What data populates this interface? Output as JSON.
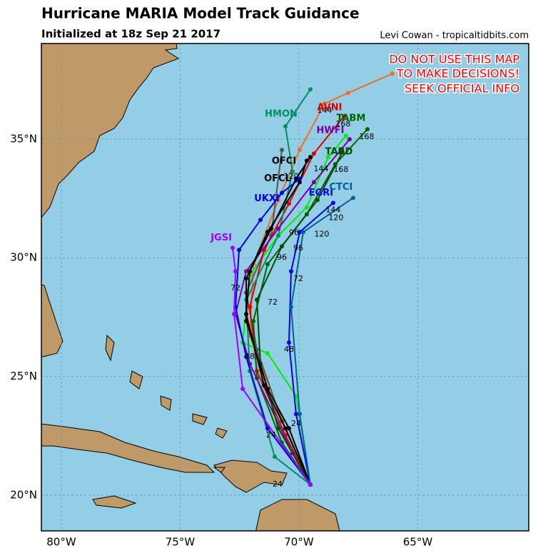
{
  "header": {
    "title": "Hurricane MARIA Model Track Guidance",
    "subtitle": "Initialized at 18z Sep 21 2017",
    "credit": "Levi Cowan - tropicaltidbits.com"
  },
  "warning": [
    "DO NOT USE THIS MAP",
    "TO MAKE DECISIONS!",
    "SEEK OFFICIAL INFO"
  ],
  "map": {
    "xlim": [
      -80.84,
      -60.33
    ],
    "ylim": [
      18.5,
      39.02
    ],
    "xticks": [
      {
        "value": -80,
        "label": "80°W"
      },
      {
        "value": -75,
        "label": "75°W"
      },
      {
        "value": -70,
        "label": "70°W"
      },
      {
        "value": -65,
        "label": "65°W"
      }
    ],
    "yticks": [
      {
        "value": 20,
        "label": "20°N"
      },
      {
        "value": 25,
        "label": "25°N"
      },
      {
        "value": 30,
        "label": "30°N"
      },
      {
        "value": 35,
        "label": "35°N"
      }
    ],
    "grid": true
  },
  "tracks": [
    {
      "color": "#f07020",
      "lon": [
        -69.52,
        -70.57,
        -72.07,
        -71.92,
        -70.87,
        -69.97,
        -68.92,
        -67.93,
        -66.07
      ],
      "lat": [
        20.45,
        22.82,
        26.73,
        29.73,
        32.43,
        34.54,
        36.49,
        36.94,
        37.75
      ]
    },
    {
      "color": "#00ee00",
      "lon": [
        -69.52,
        -70.12,
        -71.32,
        -72.37,
        -72.07,
        -70.87,
        -69.67,
        -68.77,
        -68.02
      ],
      "lat": [
        20.45,
        24.18,
        25.98,
        26.43,
        29.28,
        30.93,
        32.13,
        34.24,
        35.14
      ]
    },
    {
      "color": "#555555",
      "lon": [
        -69.52,
        -70.72,
        -71.77,
        -72.22,
        -71.17,
        -70.72
      ],
      "lat": [
        20.45,
        23.12,
        26.13,
        28.53,
        30.93,
        34.54
      ]
    },
    {
      "name": "AVNI",
      "color": "#e00000",
      "lon": [
        -69.52,
        -70.57,
        -71.77,
        -72.07,
        -71.47,
        -70.42,
        -69.37,
        -68.11
      ],
      "lat": [
        20.45,
        22.52,
        25.23,
        27.93,
        30.33,
        32.28,
        34.39,
        35.95
      ],
      "label_at": [
        -68.71,
        36.31
      ]
    },
    {
      "name": "TABM",
      "color": "#006400",
      "lon": [
        -69.52,
        -70.72,
        -71.77,
        -71.92,
        -71.32,
        -69.67,
        -68.47,
        -67.12
      ],
      "lat": [
        20.45,
        22.22,
        24.93,
        27.33,
        29.73,
        31.83,
        33.94,
        35.41
      ],
      "label_at": [
        -67.81,
        35.86
      ]
    },
    {
      "name": "HMON",
      "color": "#009060",
      "lon": [
        -69.52,
        -71.02,
        -72.07,
        -72.22,
        -70.87,
        -70.27,
        -70.57,
        -69.52
      ],
      "lat": [
        20.45,
        21.62,
        25.23,
        28.23,
        30.93,
        33.63,
        35.53,
        37.09
      ],
      "label_at": [
        -70.75,
        36.04
      ]
    },
    {
      "name": "HWFI",
      "color": "#7a00a0",
      "lon": [
        -69.52,
        -70.27,
        -72.07,
        -72.67,
        -72.22,
        -70.87,
        -69.37,
        -67.87
      ],
      "lat": [
        20.45,
        21.77,
        25.53,
        27.63,
        29.43,
        31.23,
        33.18,
        34.99
      ],
      "label_at": [
        -68.68,
        35.35
      ]
    },
    {
      "name": "TABD",
      "color": "#004d00",
      "lon": [
        -69.52,
        -70.87,
        -71.62,
        -71.77,
        -70.72,
        -69.22,
        -68.17
      ],
      "lat": [
        20.45,
        22.82,
        25.53,
        28.23,
        30.48,
        32.43,
        34.45
      ],
      "label_at": [
        -68.32,
        34.45
      ]
    },
    {
      "name": "OFCI",
      "color": "#000000",
      "lon": [
        -69.52,
        -70.57,
        -71.47,
        -72.22,
        -72.07,
        -71.17,
        -70.12,
        -69.52
      ],
      "lat": [
        20.45,
        22.82,
        24.63,
        27.63,
        29.43,
        31.23,
        33.33,
        34.24
      ],
      "label_at": [
        -70.63,
        34.06
      ]
    },
    {
      "name": "OFCL",
      "color": "#000000",
      "lon": [
        -69.52,
        -70.42,
        -71.32,
        -72.22,
        -72.22,
        -71.32,
        -69.97,
        -69.67
      ],
      "lat": [
        20.45,
        22.82,
        24.48,
        27.33,
        29.13,
        31.08,
        33.18,
        34.09
      ],
      "label_at": [
        -70.9,
        33.33
      ]
    },
    {
      "name": "EGRI",
      "color": "#0000ee",
      "lon": [
        -69.52,
        -70.12,
        -70.42,
        -70.33,
        -69.97,
        -68.56
      ],
      "lat": [
        20.45,
        23.42,
        26.43,
        29.43,
        31.08,
        32.31
      ],
      "label_at": [
        -69.07,
        32.73
      ]
    },
    {
      "name": "CTCI",
      "color": "#00609a",
      "lon": [
        -69.52,
        -69.97,
        -70.33,
        -69.82,
        -67.72
      ],
      "lat": [
        20.45,
        23.42,
        27.93,
        31.08,
        32.52
      ],
      "label_at": [
        -68.23,
        32.97
      ]
    },
    {
      "name": "UKXI",
      "color": "#0000dd",
      "lon": [
        -69.52,
        -71.32,
        -72.22,
        -72.67,
        -72.52,
        -71.62,
        -70.72,
        -69.97
      ],
      "lat": [
        20.45,
        22.82,
        25.83,
        27.93,
        30.33,
        31.59,
        32.73,
        33.33
      ],
      "label_at": [
        -71.35,
        32.49
      ]
    },
    {
      "name": "JGSI",
      "color": "#a000ff",
      "lon": [
        -69.52,
        -72.37,
        -72.73,
        -72.67,
        -72.79
      ],
      "lat": [
        20.45,
        24.48,
        27.63,
        29.43,
        30.42
      ],
      "label_at": [
        -73.27,
        30.84
      ]
    }
  ],
  "hour_labels": [
    {
      "text": "24",
      "lon": -70.12,
      "lat": 23.0
    },
    {
      "text": "24",
      "lon": -71.17,
      "lat": 22.52
    },
    {
      "text": "24",
      "lon": -70.9,
      "lat": 20.45
    },
    {
      "text": "48",
      "lon": -70.42,
      "lat": 26.13
    },
    {
      "text": "48",
      "lon": -72.07,
      "lat": 25.83
    },
    {
      "text": "72",
      "lon": -70.03,
      "lat": 29.1
    },
    {
      "text": "72",
      "lon": -71.11,
      "lat": 28.11
    },
    {
      "text": "72",
      "lon": -72.67,
      "lat": 28.71
    },
    {
      "text": "96",
      "lon": -70.21,
      "lat": 31.05
    },
    {
      "text": "96",
      "lon": -70.03,
      "lat": 30.39
    },
    {
      "text": "96",
      "lon": -70.72,
      "lat": 30.0
    },
    {
      "text": "120",
      "lon": -68.44,
      "lat": 31.68
    },
    {
      "text": "120",
      "lon": -69.04,
      "lat": 30.99
    },
    {
      "text": "120",
      "lon": -70.33,
      "lat": 33.42
    },
    {
      "text": "144",
      "lon": -68.56,
      "lat": 32.01
    },
    {
      "text": "144",
      "lon": -68.92,
      "lat": 36.19
    },
    {
      "text": "144",
      "lon": -69.07,
      "lat": 33.73
    },
    {
      "text": "168",
      "lon": -68.14,
      "lat": 35.62
    },
    {
      "text": "168",
      "lon": -67.15,
      "lat": 35.08
    },
    {
      "text": "168",
      "lon": -68.23,
      "lat": 33.7
    }
  ]
}
